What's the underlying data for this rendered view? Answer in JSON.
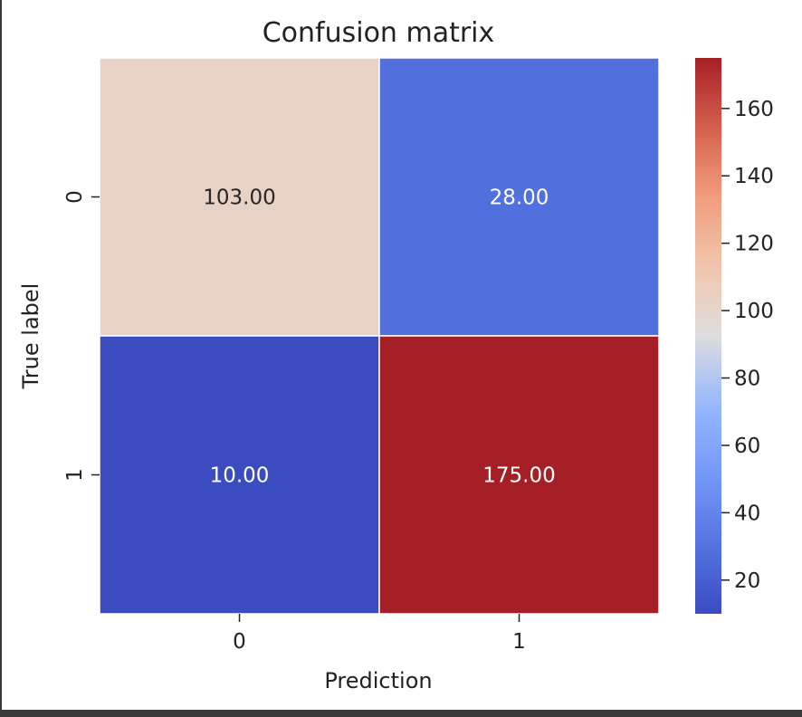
{
  "chart_data": {
    "type": "heatmap",
    "title": "Confusion matrix",
    "xlabel": "Prediction",
    "ylabel": "True label",
    "x_categories": [
      "0",
      "1"
    ],
    "y_categories": [
      "0",
      "1"
    ],
    "values": [
      [
        103,
        28
      ],
      [
        10,
        175
      ]
    ],
    "cell_labels": [
      [
        "103.00",
        "28.00"
      ],
      [
        "10.00",
        "175.00"
      ]
    ],
    "colormap": "coolwarm",
    "vmin": 10,
    "vmax": 175,
    "colorbar": {
      "ticks": [
        20,
        40,
        60,
        80,
        100,
        120,
        140,
        160
      ],
      "tick_labels": [
        "20",
        "40",
        "60",
        "80",
        "100",
        "120",
        "140",
        "160"
      ]
    },
    "grid": false
  }
}
